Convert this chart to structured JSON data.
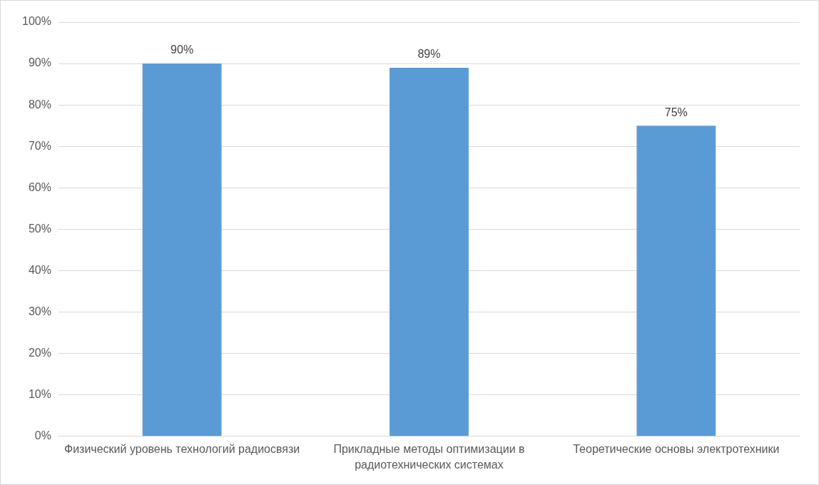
{
  "chart_data": {
    "type": "bar",
    "categories": [
      "Физический уровень технологий радиосвязи",
      "Прикладные методы оптимизации в радиотехнических системах",
      "Теоретические основы электротехники"
    ],
    "values": [
      90,
      89,
      75
    ],
    "value_labels": [
      "90%",
      "89%",
      "75%"
    ],
    "color": "#5b9bd5",
    "ylim": [
      0,
      100
    ],
    "yticks": [
      {
        "value": 0,
        "label": "0%"
      },
      {
        "value": 10,
        "label": "10%"
      },
      {
        "value": 20,
        "label": "20%"
      },
      {
        "value": 30,
        "label": "30%"
      },
      {
        "value": 40,
        "label": "40%"
      },
      {
        "value": 50,
        "label": "50%"
      },
      {
        "value": 60,
        "label": "60%"
      },
      {
        "value": 70,
        "label": "70%"
      },
      {
        "value": 80,
        "label": "80%"
      },
      {
        "value": 90,
        "label": "90%"
      },
      {
        "value": 100,
        "label": "100%"
      }
    ],
    "grid": "y",
    "legend": false
  }
}
